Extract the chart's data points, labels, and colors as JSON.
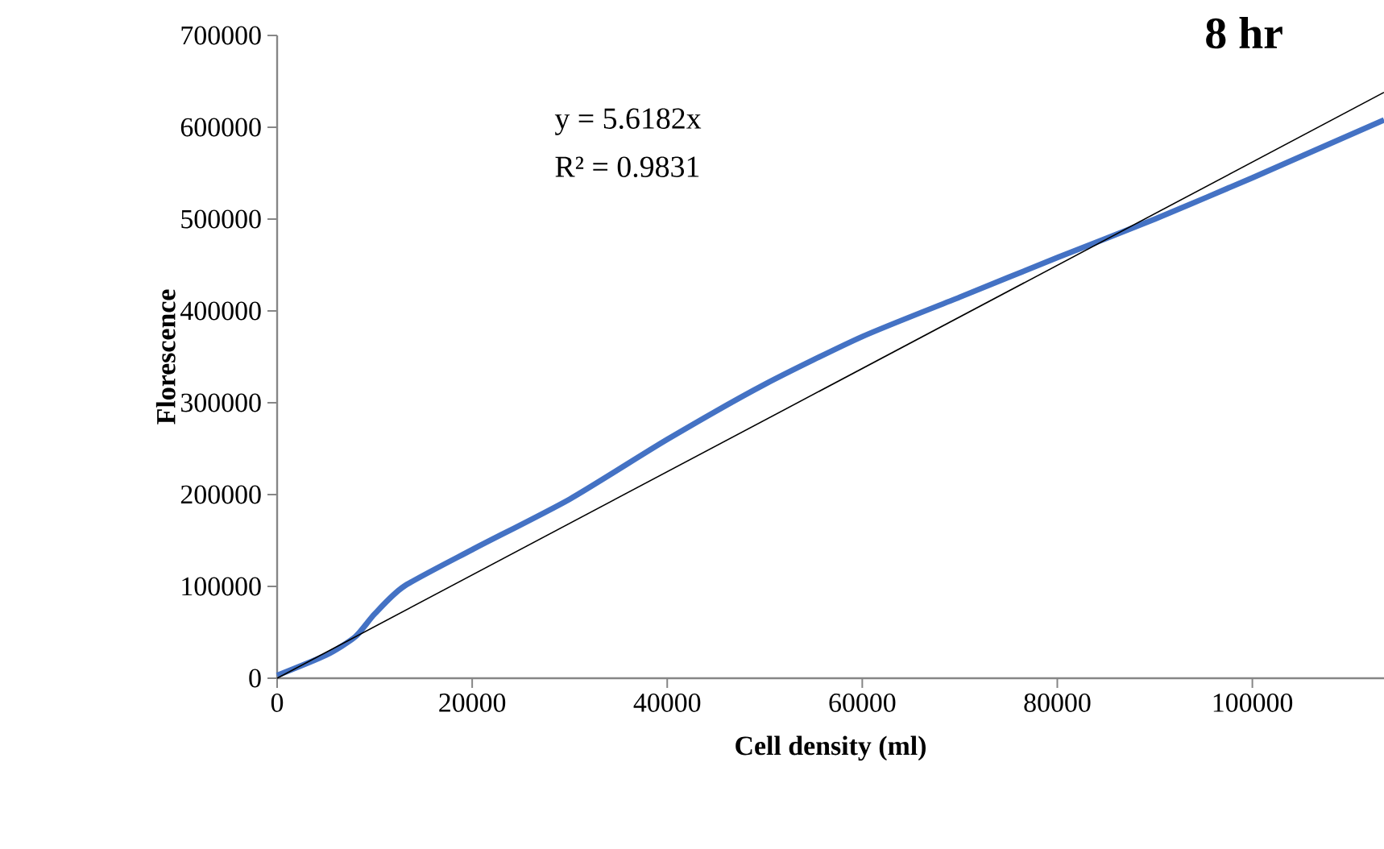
{
  "chart_data": {
    "type": "line",
    "title": "8 hr",
    "xlabel": "Cell density (ml)",
    "ylabel": "Florescence",
    "annotations": [
      "y = 5.6182x",
      "R² = 0.9831"
    ],
    "xlim": [
      0,
      113500
    ],
    "ylim": [
      0,
      700000
    ],
    "xticks": [
      0,
      20000,
      40000,
      60000,
      80000,
      100000
    ],
    "yticks": [
      0,
      100000,
      200000,
      300000,
      400000,
      500000,
      600000,
      700000
    ],
    "grid": false,
    "legend": false,
    "marker": "none",
    "line_style": "solid",
    "series": [
      {
        "color": "#4472c4",
        "x": [
          0,
          5000,
          8000,
          10000,
          13000,
          20000,
          30000,
          40000,
          50000,
          60000,
          70000,
          80000,
          90000,
          100000,
          113500
        ],
        "values": [
          3000,
          25000,
          45000,
          70000,
          100000,
          140000,
          195000,
          260000,
          320000,
          372000,
          415000,
          458000,
          500000,
          545000,
          608000
        ]
      },
      {
        "type": "line",
        "color": "#000000",
        "x": [
          0,
          113500
        ],
        "values": [
          0,
          638000
        ]
      }
    ]
  }
}
